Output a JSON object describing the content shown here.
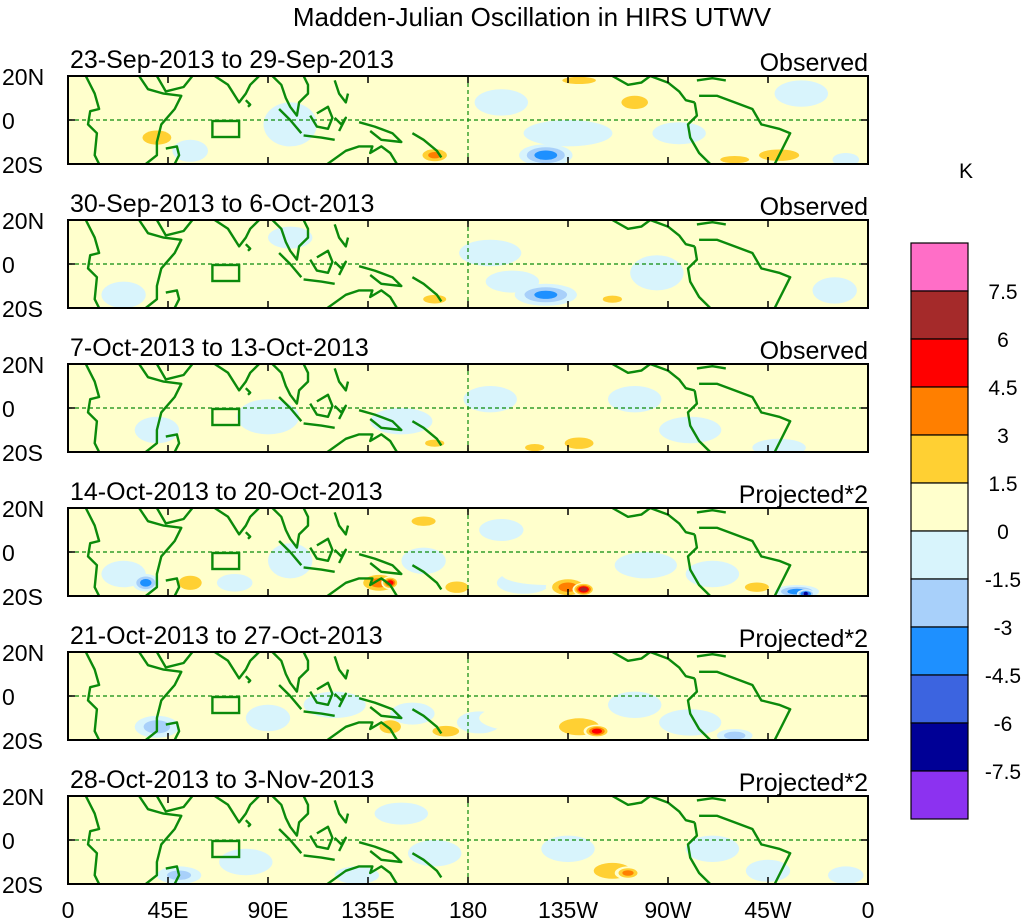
{
  "chart_data": {
    "type": "heatmap",
    "title": "Madden-Julian Oscillation in HIRS UTWV",
    "units": "K",
    "x_ticks": [
      "0",
      "45E",
      "90E",
      "135E",
      "180",
      "135W",
      "90W",
      "45W",
      "0"
    ],
    "y_ticks": [
      "20N",
      "0",
      "20S"
    ],
    "xlim": [
      0,
      360
    ],
    "ylim": [
      -20,
      20
    ],
    "colorbar": {
      "labels": [
        "7.5",
        "6",
        "4.5",
        "3",
        "1.5",
        "0",
        "-1.5",
        "-3",
        "-4.5",
        "-6",
        "-7.5"
      ],
      "colors": [
        "#ff6ec7",
        "#a52a2a",
        "#ff0000",
        "#ff7f00",
        "#ffd033",
        "#ffffcc",
        "#d8f4fc",
        "#a8d0fa",
        "#1e90ff",
        "#3c64e0",
        "#000096",
        "#8c32f0"
      ]
    },
    "panels": [
      {
        "period": "23-Sep-2013 to 29-Sep-2013",
        "label": "Observed",
        "blobs": [
          [
            40,
            -8,
            10,
            5,
            3.5
          ],
          [
            28,
            10,
            10,
            6,
            2
          ],
          [
            55,
            -14,
            8,
            5,
            -2
          ],
          [
            100,
            -2,
            12,
            10,
            -1.5
          ],
          [
            140,
            8,
            15,
            6,
            1.5
          ],
          [
            165,
            -16,
            8,
            4,
            4
          ],
          [
            195,
            8,
            12,
            6,
            -2
          ],
          [
            215,
            -16,
            12,
            5,
            -4.5
          ],
          [
            225,
            -6,
            20,
            6,
            -1.5
          ],
          [
            230,
            18,
            14,
            3,
            2.5
          ],
          [
            255,
            8,
            10,
            5,
            3
          ],
          [
            275,
            -6,
            12,
            5,
            -1.5
          ],
          [
            300,
            -18,
            12,
            3,
            2.5
          ],
          [
            320,
            -16,
            14,
            4,
            3.5
          ],
          [
            330,
            12,
            12,
            6,
            -1.5
          ],
          [
            345,
            -4,
            10,
            6,
            1.5
          ],
          [
            350,
            -18,
            6,
            3,
            -2
          ]
        ]
      },
      {
        "period": "30-Sep-2013 to 6-Oct-2013",
        "label": "Observed",
        "blobs": [
          [
            40,
            -2,
            10,
            10,
            1.5
          ],
          [
            25,
            -14,
            10,
            6,
            -1.5
          ],
          [
            100,
            12,
            10,
            5,
            -1.5
          ],
          [
            125,
            10,
            12,
            6,
            1.5
          ],
          [
            150,
            -6,
            14,
            6,
            1.5
          ],
          [
            165,
            -16,
            8,
            3,
            3.5
          ],
          [
            190,
            5,
            14,
            6,
            -1.5
          ],
          [
            200,
            -8,
            12,
            5,
            -1.5
          ],
          [
            215,
            -14,
            14,
            5,
            -4
          ],
          [
            235,
            8,
            12,
            6,
            2
          ],
          [
            245,
            -16,
            8,
            3,
            2.5
          ],
          [
            265,
            -4,
            12,
            8,
            -2
          ],
          [
            300,
            -16,
            10,
            4,
            1.5
          ],
          [
            325,
            8,
            10,
            6,
            1.5
          ],
          [
            345,
            -12,
            10,
            6,
            -1.5
          ]
        ]
      },
      {
        "period": "7-Oct-2013 to 13-Oct-2013",
        "label": "Observed",
        "blobs": [
          [
            40,
            -10,
            10,
            6,
            -1.5
          ],
          [
            55,
            12,
            10,
            6,
            1.5
          ],
          [
            90,
            -4,
            14,
            8,
            -1.5
          ],
          [
            125,
            -12,
            12,
            5,
            1.5
          ],
          [
            150,
            -6,
            14,
            6,
            -1.5
          ],
          [
            165,
            -16,
            8,
            3,
            2.5
          ],
          [
            190,
            4,
            12,
            6,
            -1.5
          ],
          [
            200,
            -12,
            10,
            5,
            1.5
          ],
          [
            210,
            -18,
            8,
            3,
            2.5
          ],
          [
            230,
            -16,
            10,
            4,
            3.5
          ],
          [
            255,
            4,
            12,
            6,
            -1.5
          ],
          [
            280,
            -10,
            14,
            6,
            -1.5
          ],
          [
            300,
            14,
            12,
            4,
            1.5
          ],
          [
            320,
            -18,
            12,
            4,
            -2
          ],
          [
            345,
            -2,
            10,
            8,
            1.5
          ]
        ]
      },
      {
        "period": "14-Oct-2013 to 20-Oct-2013",
        "label": "Projected*2",
        "blobs": [
          [
            25,
            -10,
            10,
            6,
            -2
          ],
          [
            35,
            -14,
            6,
            4,
            -4.5
          ],
          [
            55,
            -14,
            8,
            5,
            3.5
          ],
          [
            70,
            12,
            10,
            6,
            1.5
          ],
          [
            75,
            -14,
            8,
            4,
            -1.5
          ],
          [
            100,
            -4,
            10,
            8,
            -1.5
          ],
          [
            115,
            12,
            12,
            6,
            1.5
          ],
          [
            140,
            -14,
            10,
            5,
            4.5
          ],
          [
            145,
            -14,
            4,
            3,
            6.5
          ],
          [
            160,
            14,
            10,
            4,
            2.5
          ],
          [
            160,
            -4,
            10,
            6,
            -1.5
          ],
          [
            175,
            -16,
            8,
            4,
            3.5
          ],
          [
            195,
            10,
            10,
            5,
            -1.5
          ],
          [
            205,
            -14,
            12,
            5,
            -2
          ],
          [
            215,
            -10,
            20,
            5,
            2
          ],
          [
            225,
            -16,
            10,
            5,
            4.5
          ],
          [
            232,
            -17,
            5,
            3,
            8
          ],
          [
            260,
            -6,
            14,
            6,
            -1.5
          ],
          [
            290,
            -10,
            12,
            6,
            -2
          ],
          [
            310,
            -16,
            10,
            4,
            2.5
          ],
          [
            328,
            -18,
            10,
            3,
            -4.5
          ],
          [
            332,
            -19,
            4,
            2,
            -7
          ],
          [
            345,
            8,
            10,
            6,
            1.5
          ]
        ]
      },
      {
        "period": "21-Oct-2013 to 27-Oct-2013",
        "label": "Projected*2",
        "blobs": [
          [
            40,
            -14,
            10,
            5,
            -3
          ],
          [
            80,
            10,
            12,
            6,
            1.5
          ],
          [
            90,
            -10,
            10,
            6,
            -1.5
          ],
          [
            120,
            -4,
            14,
            6,
            -1.5
          ],
          [
            145,
            -14,
            8,
            5,
            3
          ],
          [
            155,
            -8,
            10,
            5,
            -1.5
          ],
          [
            170,
            -16,
            10,
            4,
            3
          ],
          [
            185,
            -12,
            10,
            5,
            -1.5
          ],
          [
            205,
            -10,
            20,
            6,
            2
          ],
          [
            230,
            -14,
            14,
            6,
            3.5
          ],
          [
            238,
            -16,
            6,
            3,
            6.5
          ],
          [
            255,
            -4,
            12,
            6,
            -1.5
          ],
          [
            280,
            -12,
            14,
            6,
            -2
          ],
          [
            300,
            -18,
            8,
            3,
            -3
          ],
          [
            315,
            10,
            10,
            5,
            1.5
          ],
          [
            345,
            -8,
            10,
            6,
            1.5
          ]
        ]
      },
      {
        "period": "28-Oct-2013 to 3-Nov-2013",
        "label": "Projected*2",
        "blobs": [
          [
            20,
            -12,
            10,
            5,
            1.5
          ],
          [
            50,
            -16,
            10,
            4,
            -2.5
          ],
          [
            80,
            -10,
            12,
            6,
            -1.5
          ],
          [
            100,
            12,
            12,
            6,
            1.5
          ],
          [
            120,
            -4,
            14,
            6,
            1.5
          ],
          [
            130,
            -16,
            10,
            4,
            -1.5
          ],
          [
            150,
            12,
            12,
            5,
            -1.5
          ],
          [
            165,
            -6,
            12,
            6,
            -1.5
          ],
          [
            180,
            -16,
            8,
            3,
            1.5
          ],
          [
            200,
            10,
            12,
            6,
            1.5
          ],
          [
            225,
            -4,
            12,
            6,
            -1.5
          ],
          [
            245,
            -14,
            14,
            6,
            3
          ],
          [
            252,
            -15,
            6,
            3,
            4.5
          ],
          [
            270,
            10,
            10,
            5,
            1.5
          ],
          [
            290,
            -4,
            12,
            6,
            -1.5
          ],
          [
            315,
            -14,
            10,
            5,
            -1.5
          ],
          [
            335,
            4,
            10,
            6,
            1.5
          ],
          [
            350,
            -16,
            8,
            4,
            -1.5
          ]
        ]
      }
    ]
  }
}
